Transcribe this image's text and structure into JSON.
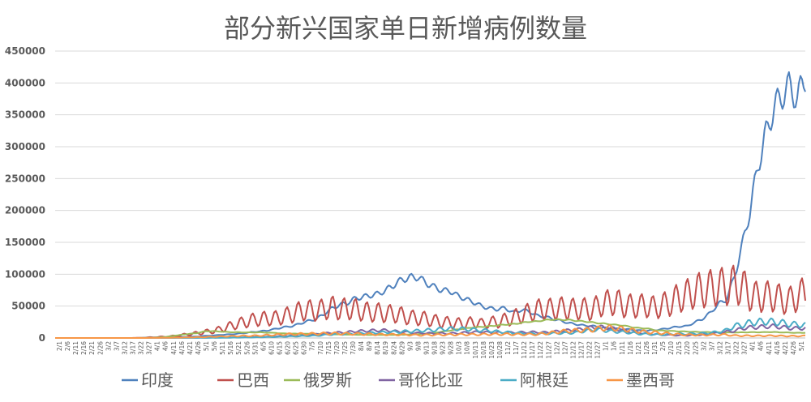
{
  "chart_data": {
    "type": "line",
    "title": "部分新兴国家单日新增病例数量",
    "xlabel": "",
    "ylabel": "",
    "ylim": [
      0,
      450000
    ],
    "yticks": [
      0,
      50000,
      100000,
      150000,
      200000,
      250000,
      300000,
      350000,
      400000,
      450000
    ],
    "grid": true,
    "legend": "bottom",
    "x_start": "2020-02-01",
    "x_end": "2021-05-05",
    "xticks": [
      "2/1",
      "2/6",
      "2/11",
      "2/16",
      "2/21",
      "2/26",
      "3/2",
      "3/7",
      "3/12",
      "3/17",
      "3/22",
      "3/27",
      "4/1",
      "4/6",
      "4/11",
      "4/16",
      "4/21",
      "4/26",
      "5/1",
      "5/6",
      "5/11",
      "5/16",
      "5/21",
      "5/26",
      "5/31",
      "6/5",
      "6/10",
      "6/15",
      "6/20",
      "6/25",
      "6/30",
      "7/5",
      "7/10",
      "7/15",
      "7/20",
      "7/25",
      "7/30",
      "8/4",
      "8/9",
      "8/14",
      "8/19",
      "8/24",
      "8/29",
      "9/3",
      "9/8",
      "9/13",
      "9/18",
      "9/23",
      "9/28",
      "10/3",
      "10/8",
      "10/13",
      "10/18",
      "10/23",
      "10/28",
      "11/2",
      "11/7",
      "11/12",
      "11/17",
      "11/22",
      "11/27",
      "12/2",
      "12/7",
      "12/12",
      "12/17",
      "12/22",
      "12/27",
      "1/1",
      "1/6",
      "1/11",
      "1/16",
      "1/21",
      "1/26",
      "1/31",
      "2/5",
      "2/10",
      "2/15",
      "2/20",
      "2/25",
      "3/2",
      "3/7",
      "3/12",
      "3/17",
      "3/22",
      "3/27",
      "4/1",
      "4/6",
      "4/11",
      "4/16",
      "4/21",
      "4/26",
      "5/1"
    ],
    "series": [
      {
        "name": "印度",
        "color": "#4f81bd",
        "values": [
          0,
          0,
          0,
          0,
          0,
          0,
          0,
          0,
          0,
          0,
          0,
          0,
          100,
          400,
          900,
          1200,
          1500,
          1800,
          2300,
          3300,
          3800,
          4900,
          5600,
          6500,
          7900,
          9300,
          10500,
          12000,
          14500,
          17000,
          18500,
          22500,
          26500,
          29500,
          37000,
          46000,
          52000,
          55000,
          62000,
          64500,
          67000,
          69500,
          76000,
          84000,
          92000,
          95000,
          95500,
          86000,
          80000,
          74500,
          74000,
          66000,
          61000,
          56000,
          50000,
          46500,
          45000,
          47000,
          40000,
          44000,
          42000,
          35000,
          33500,
          30000,
          27000,
          23500,
          21500,
          19500,
          19000,
          16500,
          15500,
          14500,
          13800,
          13000,
          11800,
          11500,
          12500,
          14000,
          16000,
          18000,
          18500,
          24500,
          30000,
          40000,
          53500,
          60000,
          95000,
          145000,
          200000,
          270000,
          320000,
          360000,
          380000,
          395000,
          375000,
          410000
        ]
      },
      {
        "name": "巴西",
        "color": "#c0504d",
        "values": [
          0,
          0,
          0,
          0,
          0,
          0,
          0,
          0,
          0,
          0,
          100,
          300,
          1000,
          1500,
          2000,
          3000,
          4500,
          6000,
          7500,
          9500,
          11000,
          14000,
          18000,
          22000,
          25000,
          28000,
          30000,
          30500,
          31000,
          34000,
          37500,
          42000,
          44000,
          42000,
          45000,
          48000,
          45000,
          46000,
          45000,
          42000,
          40000,
          40000,
          38000,
          38000,
          35000,
          32000,
          31000,
          30000,
          27000,
          25000,
          24000,
          23000,
          22000,
          25500,
          22000,
          24500,
          25000,
          28500,
          32000,
          36000,
          40000,
          44000,
          46000,
          45000,
          47000,
          46000,
          45000,
          46000,
          43000,
          53000,
          55000,
          57000,
          51000,
          50000,
          50000,
          51000,
          47000,
          52000,
          55000,
          64000,
          67000,
          74000,
          75000,
          78000,
          80000,
          81000,
          83000,
          81000,
          67000,
          64000,
          65000,
          65500,
          60000,
          58000,
          66000,
          70000
        ]
      },
      {
        "name": "俄罗斯",
        "color": "#9bbb59",
        "values": [
          0,
          0,
          0,
          0,
          0,
          0,
          0,
          0,
          0,
          0,
          0,
          100,
          500,
          1000,
          1700,
          3400,
          5000,
          6500,
          7700,
          10500,
          10700,
          10000,
          9200,
          9000,
          8700,
          8600,
          8800,
          8300,
          7900,
          7000,
          6900,
          6600,
          6600,
          6400,
          5900,
          5800,
          5600,
          5300,
          5100,
          5000,
          4900,
          4900,
          4800,
          5000,
          5100,
          5500,
          6000,
          6900,
          8000,
          9800,
          11600,
          13500,
          15000,
          16700,
          17500,
          18500,
          19800,
          21000,
          21800,
          23500,
          25500,
          26000,
          28000,
          29000,
          28600,
          28500,
          27000,
          26000,
          24500,
          23000,
          22000,
          20500,
          19500,
          17000,
          15500,
          15000,
          12000,
          11500,
          11000,
          10500,
          10000,
          9500,
          9300,
          9000,
          8600,
          8500,
          8600,
          8800,
          9000,
          9000,
          9200,
          9300,
          8700,
          8500,
          8000,
          8300
        ]
      },
      {
        "name": "哥伦比亚",
        "color": "#8064a2",
        "values": [
          0,
          0,
          0,
          0,
          0,
          0,
          0,
          0,
          0,
          0,
          0,
          50,
          100,
          150,
          150,
          200,
          200,
          300,
          350,
          450,
          500,
          600,
          700,
          900,
          1200,
          1500,
          1800,
          2200,
          2900,
          3200,
          3800,
          3900,
          4300,
          5600,
          6900,
          8000,
          8500,
          9000,
          10500,
          11000,
          11500,
          12000,
          12000,
          10500,
          9500,
          8500,
          7500,
          7500,
          7000,
          7200,
          7100,
          7500,
          8500,
          9000,
          9800,
          8500,
          8400,
          8200,
          8500,
          8800,
          9000,
          9200,
          8500,
          9500,
          11000,
          12000,
          13000,
          14500,
          16500,
          17000,
          16000,
          14000,
          12000,
          9500,
          8500,
          7000,
          6000,
          5200,
          4500,
          4000,
          4000,
          4500,
          5000,
          6000,
          8000,
          10000,
          11000,
          15000,
          16500,
          17000,
          18000,
          18500,
          17000,
          15500,
          15000,
          15500
        ]
      },
      {
        "name": "阿根廷",
        "color": "#4bacc6",
        "values": [
          0,
          0,
          0,
          0,
          0,
          0,
          0,
          0,
          0,
          0,
          0,
          50,
          100,
          100,
          100,
          100,
          150,
          150,
          150,
          200,
          200,
          300,
          400,
          550,
          750,
          900,
          1200,
          1500,
          1700,
          2200,
          2500,
          2800,
          3300,
          3600,
          4500,
          5700,
          6000,
          6500,
          7000,
          7500,
          7800,
          8300,
          9200,
          9300,
          10000,
          10500,
          11200,
          12000,
          12500,
          14000,
          14500,
          14300,
          14000,
          13000,
          12000,
          11500,
          10000,
          9000,
          8000,
          7500,
          7000,
          6500,
          7000,
          7200,
          7600,
          7700,
          8500,
          11000,
          12500,
          13000,
          11000,
          10000,
          9000,
          8000,
          6500,
          6000,
          5500,
          5000,
          6000,
          6500,
          6200,
          6800,
          7000,
          8000,
          9500,
          12000,
          19000,
          20000,
          24000,
          25000,
          26000,
          25000,
          24000,
          21500,
          21000,
          20000
        ]
      },
      {
        "name": "墨西哥",
        "color": "#f79646",
        "values": [
          0,
          0,
          0,
          0,
          0,
          0,
          0,
          0,
          0,
          0,
          0,
          50,
          100,
          150,
          300,
          500,
          700,
          900,
          1200,
          1500,
          1900,
          2300,
          2700,
          3100,
          3200,
          3400,
          3800,
          4400,
          5000,
          5700,
          6000,
          6200,
          6500,
          6600,
          6900,
          7000,
          6900,
          6700,
          6500,
          6200,
          6000,
          5400,
          5400,
          5300,
          5200,
          4900,
          4500,
          4700,
          4900,
          5000,
          5200,
          5300,
          5500,
          5400,
          5600,
          5900,
          5900,
          6000,
          5800,
          5500,
          5700,
          5600,
          7000,
          8500,
          10000,
          11000,
          11500,
          12500,
          13000,
          15000,
          16000,
          15000,
          14000,
          12000,
          10500,
          9000,
          8500,
          7500,
          6500,
          5500,
          5000,
          4800,
          4700,
          4900,
          5000,
          5100,
          3800,
          3500,
          3500,
          3400,
          3500,
          3600,
          3200,
          3000,
          3100,
          3200
        ]
      }
    ]
  }
}
